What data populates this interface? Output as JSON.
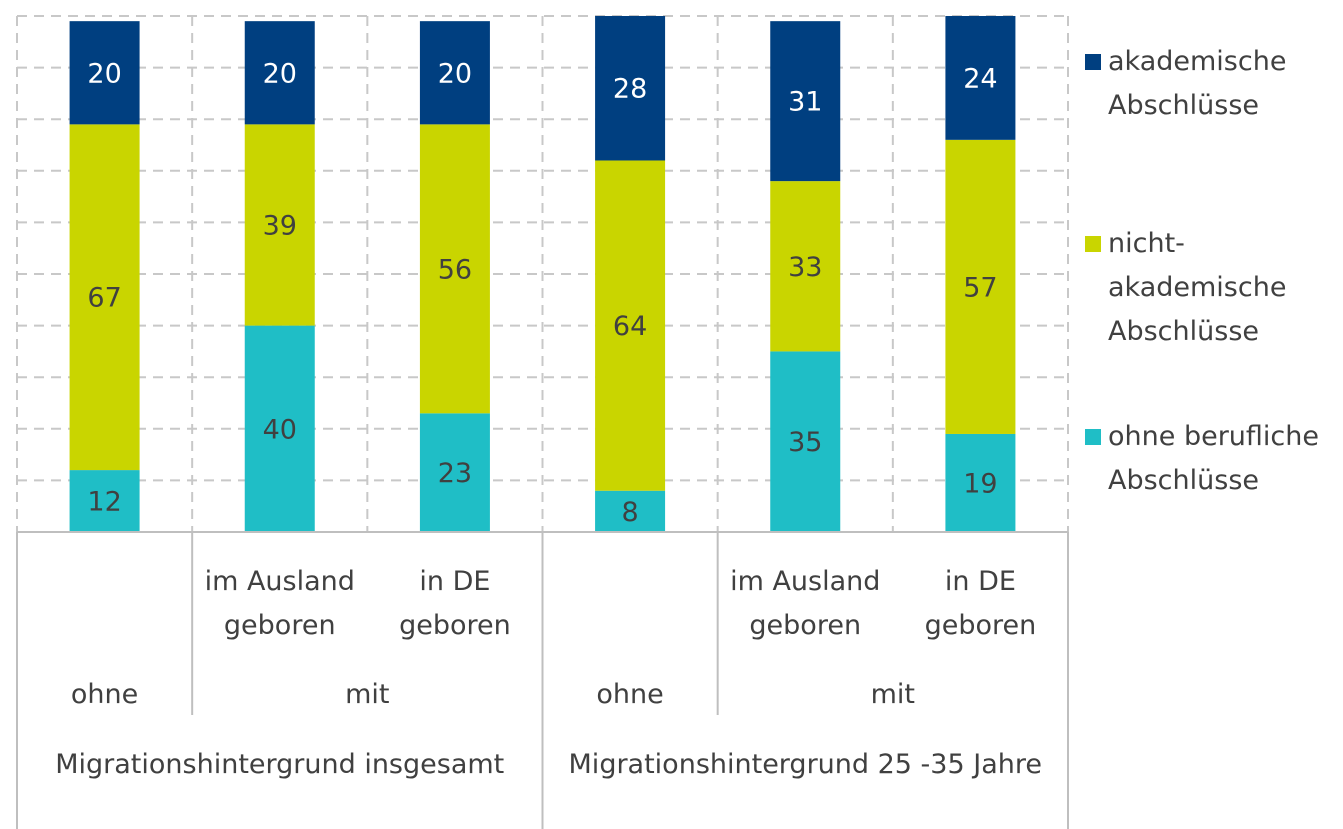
{
  "chart_data": {
    "type": "stacked_bar",
    "groups": [
      {
        "name": "Migrationshintergrund insgesamt",
        "subgroups": [
          {
            "name": "ohne",
            "categories": [
              null
            ]
          },
          {
            "name": "mit",
            "categories": [
              "im Ausland geboren",
              "in DE geboren"
            ]
          }
        ]
      },
      {
        "name": "Migrationshintergrund 25 -35 Jahre",
        "subgroups": [
          {
            "name": "ohne",
            "categories": [
              null
            ]
          },
          {
            "name": "mit",
            "categories": [
              "im Ausland geboren",
              "in DE geboren"
            ]
          }
        ]
      }
    ],
    "series": [
      {
        "name": "ohne berufliche Abschlüsse",
        "color": "#1fbec6",
        "values": [
          12,
          40,
          23,
          8,
          35,
          19
        ]
      },
      {
        "name": "nicht-akademische Abschlüsse",
        "color": "#c9d500",
        "values": [
          67,
          39,
          56,
          64,
          33,
          57
        ]
      },
      {
        "name": "akademische Abschlüsse",
        "color": "#003f80",
        "values": [
          20,
          20,
          20,
          28,
          31,
          24
        ]
      }
    ],
    "ylim": [
      0,
      100
    ],
    "yticks": [
      0,
      10,
      20,
      30,
      40,
      50,
      60,
      70,
      80,
      90,
      100
    ],
    "grid": true
  }
}
